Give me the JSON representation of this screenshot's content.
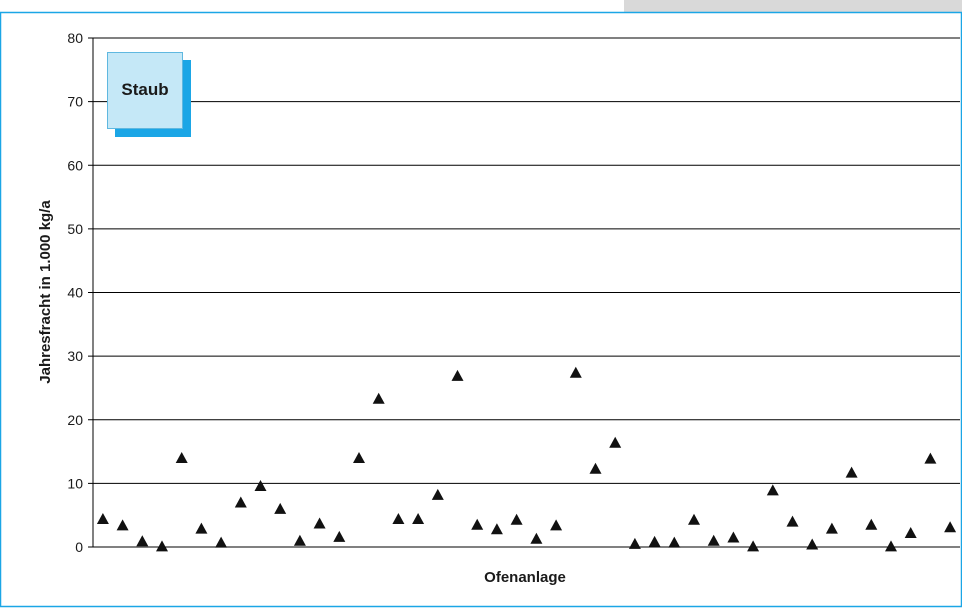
{
  "chart_data": {
    "type": "scatter",
    "title": "",
    "xlabel": "Ofenanlage",
    "ylabel": "Jahresfracht in 1.000 kg/a",
    "ylim": [
      0,
      80
    ],
    "yticks": [
      "0",
      "10",
      "20",
      "30",
      "40",
      "50",
      "60",
      "70",
      "80"
    ],
    "grid": true,
    "marker": "triangle",
    "legend": {
      "label": "Staub",
      "placement": "top-left"
    },
    "colors": {
      "marker": "#111111",
      "frame": "#1ba6e6",
      "legend_fill": "#c5e8f7",
      "legend_shadow": "#1ba6e6",
      "corner_tab": "#d9d9d9"
    },
    "series": [
      {
        "values": [
          4.3,
          3.3,
          0.8,
          0.0,
          13.9,
          2.8,
          0.6,
          6.9,
          9.5,
          5.9,
          0.9,
          3.6,
          1.5,
          13.9,
          23.2,
          4.3,
          4.3,
          8.1,
          26.8,
          3.4,
          2.7,
          4.2,
          1.2,
          3.3,
          27.3,
          12.2,
          16.3,
          0.4,
          0.7,
          0.6,
          4.2,
          0.9,
          1.4,
          0.0,
          8.8,
          3.9,
          0.3,
          2.8,
          11.6,
          3.4,
          0.0,
          2.1,
          13.8,
          3.0
        ]
      }
    ]
  }
}
